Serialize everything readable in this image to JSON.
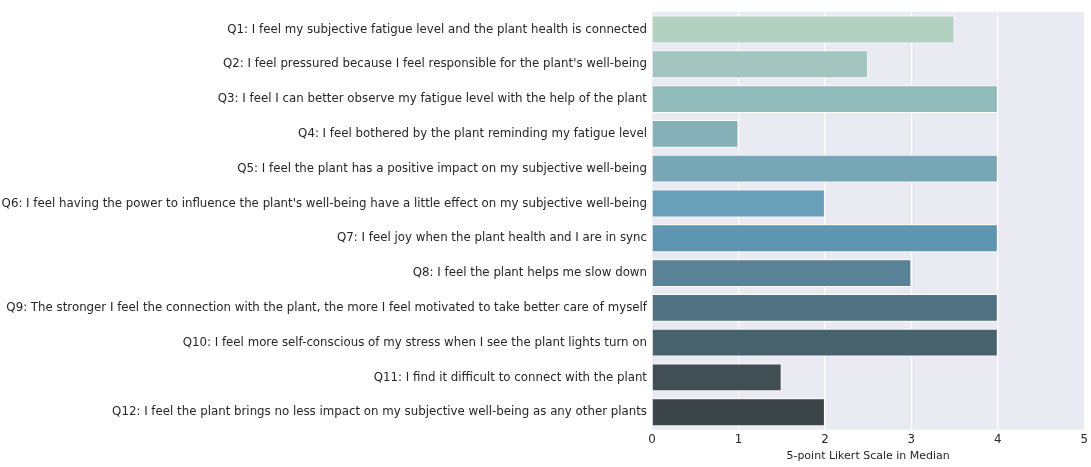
{
  "chart_data": {
    "type": "bar",
    "orientation": "horizontal",
    "xlabel": "5-point Likert Scale in Median",
    "categories": [
      "Q1: I feel my subjective fatigue level and the plant health is connected",
      "Q2: I feel pressured because I feel responsible for the plant's well-being",
      "Q3: I feel I can better observe my fatigue level with the help of the plant",
      "Q4: I feel bothered by the plant reminding my fatigue level",
      "Q5: I feel the plant has a positive impact on my subjective well-being",
      "Q6: I feel having the power to influence the plant's well-being have a little effect on my subjective well-being",
      "Q7: I feel joy when the plant health and I are in sync",
      "Q8: I feel the plant helps me slow down",
      "Q9: The stronger I feel the connection with the plant, the more I feel motivated to take better care of myself",
      "Q10: I feel more self-conscious of my stress when I see the plant lights turn on",
      "Q11: I find it difficult to connect with the plant",
      "Q12: I feel the plant brings no less impact on my subjective well-being as any other plants"
    ],
    "values": [
      3.5,
      2.5,
      4,
      1,
      4,
      2,
      4,
      3,
      4,
      4,
      1.5,
      2
    ],
    "colors": [
      "#b3d1c0",
      "#a2c6bd",
      "#92bcbb",
      "#84b0b8",
      "#78a8b8",
      "#69a0b9",
      "#5e95b1",
      "#598296",
      "#4f7382",
      "#48626e",
      "#414e54",
      "#3b4446"
    ],
    "xlim": [
      0,
      5
    ],
    "xticks": [
      0,
      1,
      2,
      3,
      4,
      5
    ],
    "grid": "x",
    "legend": false
  }
}
